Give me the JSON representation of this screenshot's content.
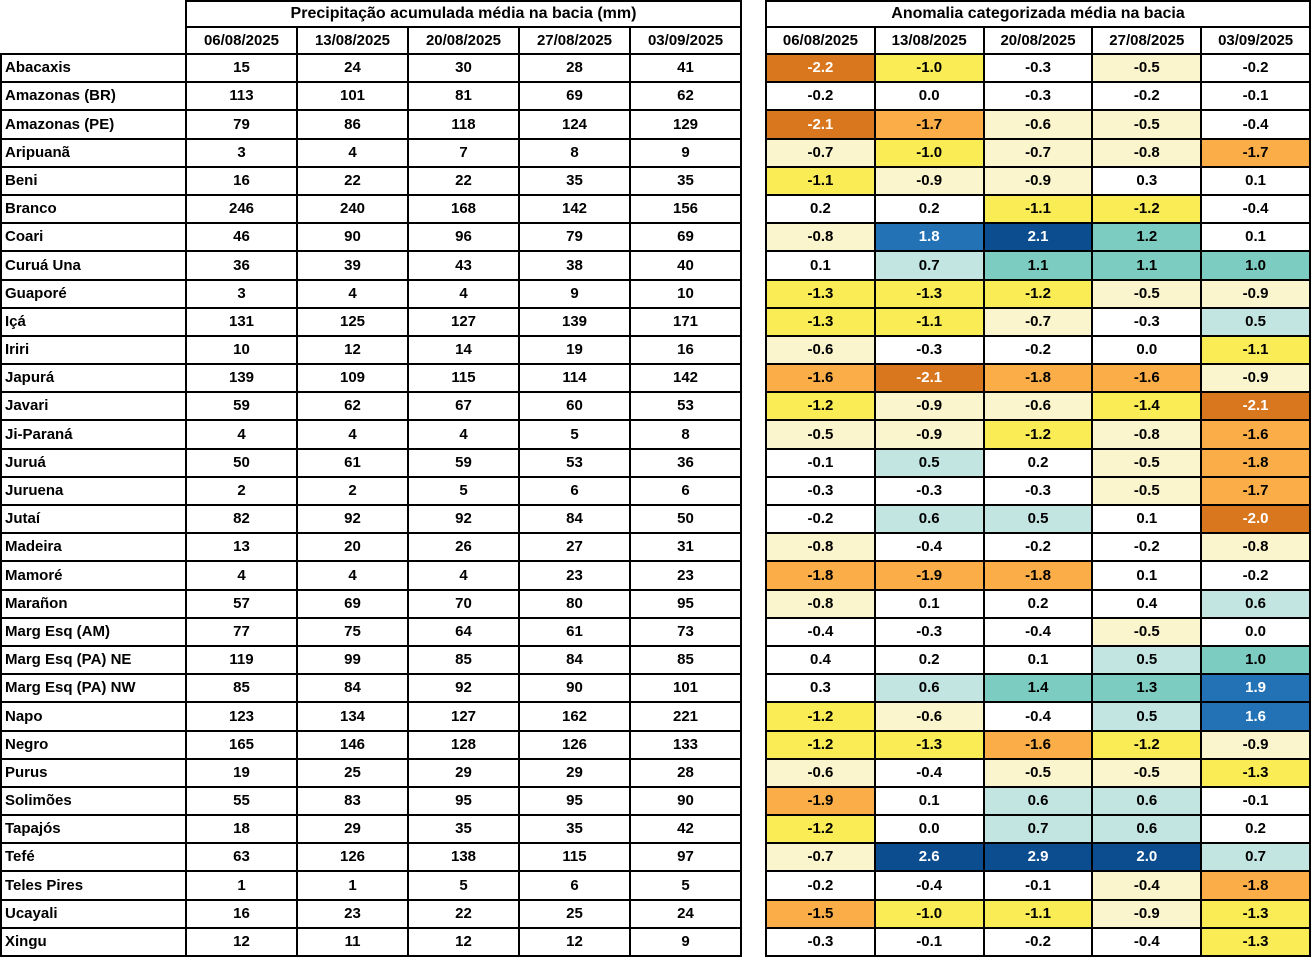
{
  "chart_data": [
    {
      "type": "table",
      "title": "Precipitação acumulada média na bacia (mm)",
      "columns": [
        "06/08/2025",
        "13/08/2025",
        "20/08/2025",
        "27/08/2025",
        "03/09/2025"
      ],
      "row_label": "basin",
      "rows": [
        {
          "basin": "Abacaxis",
          "values": [
            15,
            24,
            30,
            28,
            41
          ]
        },
        {
          "basin": "Amazonas (BR)",
          "values": [
            113,
            101,
            81,
            69,
            62
          ]
        },
        {
          "basin": "Amazonas (PE)",
          "values": [
            79,
            86,
            118,
            124,
            129
          ]
        },
        {
          "basin": "Aripuanã",
          "values": [
            3,
            4,
            7,
            8,
            9
          ]
        },
        {
          "basin": "Beni",
          "values": [
            16,
            22,
            22,
            35,
            35
          ]
        },
        {
          "basin": "Branco",
          "values": [
            246,
            240,
            168,
            142,
            156
          ]
        },
        {
          "basin": "Coari",
          "values": [
            46,
            90,
            96,
            79,
            69
          ]
        },
        {
          "basin": "Curuá Una",
          "values": [
            36,
            39,
            43,
            38,
            40
          ]
        },
        {
          "basin": "Guaporé",
          "values": [
            3,
            4,
            4,
            9,
            10
          ]
        },
        {
          "basin": "Içá",
          "values": [
            131,
            125,
            127,
            139,
            171
          ]
        },
        {
          "basin": "Iriri",
          "values": [
            10,
            12,
            14,
            19,
            16
          ]
        },
        {
          "basin": "Japurá",
          "values": [
            139,
            109,
            115,
            114,
            142
          ]
        },
        {
          "basin": "Javari",
          "values": [
            59,
            62,
            67,
            60,
            53
          ]
        },
        {
          "basin": "Ji-Paraná",
          "values": [
            4,
            4,
            4,
            5,
            8
          ]
        },
        {
          "basin": "Juruá",
          "values": [
            50,
            61,
            59,
            53,
            36
          ]
        },
        {
          "basin": "Juruena",
          "values": [
            2,
            2,
            5,
            6,
            6
          ]
        },
        {
          "basin": "Jutaí",
          "values": [
            82,
            92,
            92,
            84,
            50
          ]
        },
        {
          "basin": "Madeira",
          "values": [
            13,
            20,
            26,
            27,
            31
          ]
        },
        {
          "basin": "Mamoré",
          "values": [
            4,
            4,
            4,
            23,
            23
          ]
        },
        {
          "basin": "Marañon",
          "values": [
            57,
            69,
            70,
            80,
            95
          ]
        },
        {
          "basin": "Marg Esq (AM)",
          "values": [
            77,
            75,
            64,
            61,
            73
          ]
        },
        {
          "basin": "Marg Esq (PA) NE",
          "values": [
            119,
            99,
            85,
            84,
            85
          ]
        },
        {
          "basin": "Marg Esq (PA) NW",
          "values": [
            85,
            84,
            92,
            90,
            101
          ]
        },
        {
          "basin": "Napo",
          "values": [
            123,
            134,
            127,
            162,
            221
          ]
        },
        {
          "basin": "Negro",
          "values": [
            165,
            146,
            128,
            126,
            133
          ]
        },
        {
          "basin": "Purus",
          "values": [
            19,
            25,
            29,
            29,
            28
          ]
        },
        {
          "basin": "Solimões",
          "values": [
            55,
            83,
            95,
            95,
            90
          ]
        },
        {
          "basin": "Tapajós",
          "values": [
            18,
            29,
            35,
            35,
            42
          ]
        },
        {
          "basin": "Tefé",
          "values": [
            63,
            126,
            138,
            115,
            97
          ]
        },
        {
          "basin": "Teles Pires",
          "values": [
            1,
            1,
            5,
            6,
            5
          ]
        },
        {
          "basin": "Ucayali",
          "values": [
            16,
            23,
            22,
            25,
            24
          ]
        },
        {
          "basin": "Xingu",
          "values": [
            12,
            11,
            12,
            12,
            9
          ]
        }
      ]
    },
    {
      "type": "heatmap",
      "title": "Anomalia categorizada média na bacia",
      "columns": [
        "06/08/2025",
        "13/08/2025",
        "20/08/2025",
        "27/08/2025",
        "03/09/2025"
      ],
      "row_label": "basin",
      "category_colors": {
        "-4": {
          "bg": "#D9771E",
          "fg": "#FFFFFF"
        },
        "-3": {
          "bg": "#FBAE47",
          "fg": "#000000"
        },
        "-2": {
          "bg": "#F9EC54",
          "fg": "#000000"
        },
        "-1": {
          "bg": "#FAF5CC",
          "fg": "#000000"
        },
        "0": {
          "bg": "#FFFFFF",
          "fg": "#000000"
        },
        "1": {
          "bg": "#C3E5E2",
          "fg": "#000000"
        },
        "2": {
          "bg": "#7CCCC1",
          "fg": "#000000"
        },
        "3": {
          "bg": "#2272B5",
          "fg": "#FFFFFF"
        },
        "4": {
          "bg": "#0B4D8E",
          "fg": "#FFFFFF"
        }
      },
      "rows": [
        {
          "basin": "Abacaxis",
          "values": [
            "-2.2",
            "-1.0",
            "-0.3",
            "-0.5",
            "-0.2"
          ],
          "cats": [
            -4,
            -2,
            0,
            -1,
            0
          ]
        },
        {
          "basin": "Amazonas (BR)",
          "values": [
            "-0.2",
            "0.0",
            "-0.3",
            "-0.2",
            "-0.1"
          ],
          "cats": [
            0,
            0,
            0,
            0,
            0
          ]
        },
        {
          "basin": "Amazonas (PE)",
          "values": [
            "-2.1",
            "-1.7",
            "-0.6",
            "-0.5",
            "-0.4"
          ],
          "cats": [
            -4,
            -3,
            -1,
            -1,
            0
          ]
        },
        {
          "basin": "Aripuanã",
          "values": [
            "-0.7",
            "-1.0",
            "-0.7",
            "-0.8",
            "-1.7"
          ],
          "cats": [
            -1,
            -2,
            -1,
            -1,
            -3
          ]
        },
        {
          "basin": "Beni",
          "values": [
            "-1.1",
            "-0.9",
            "-0.9",
            "0.3",
            "0.1"
          ],
          "cats": [
            -2,
            -1,
            -1,
            0,
            0
          ]
        },
        {
          "basin": "Branco",
          "values": [
            "0.2",
            "0.2",
            "-1.1",
            "-1.2",
            "-0.4"
          ],
          "cats": [
            0,
            0,
            -2,
            -2,
            0
          ]
        },
        {
          "basin": "Coari",
          "values": [
            "-0.8",
            "1.8",
            "2.1",
            "1.2",
            "0.1"
          ],
          "cats": [
            -1,
            3,
            4,
            2,
            0
          ]
        },
        {
          "basin": "Curuá Una",
          "values": [
            "0.1",
            "0.7",
            "1.1",
            "1.1",
            "1.0"
          ],
          "cats": [
            0,
            1,
            2,
            2,
            2
          ]
        },
        {
          "basin": "Guaporé",
          "values": [
            "-1.3",
            "-1.3",
            "-1.2",
            "-0.5",
            "-0.9"
          ],
          "cats": [
            -2,
            -2,
            -2,
            -1,
            -1
          ]
        },
        {
          "basin": "Içá",
          "values": [
            "-1.3",
            "-1.1",
            "-0.7",
            "-0.3",
            "0.5"
          ],
          "cats": [
            -2,
            -2,
            -1,
            0,
            1
          ]
        },
        {
          "basin": "Iriri",
          "values": [
            "-0.6",
            "-0.3",
            "-0.2",
            "0.0",
            "-1.1"
          ],
          "cats": [
            -1,
            0,
            0,
            0,
            -2
          ]
        },
        {
          "basin": "Japurá",
          "values": [
            "-1.6",
            "-2.1",
            "-1.8",
            "-1.6",
            "-0.9"
          ],
          "cats": [
            -3,
            -4,
            -3,
            -3,
            -1
          ]
        },
        {
          "basin": "Javari",
          "values": [
            "-1.2",
            "-0.9",
            "-0.6",
            "-1.4",
            "-2.1"
          ],
          "cats": [
            -2,
            -1,
            -1,
            -2,
            -4
          ]
        },
        {
          "basin": "Ji-Paraná",
          "values": [
            "-0.5",
            "-0.9",
            "-1.2",
            "-0.8",
            "-1.6"
          ],
          "cats": [
            -1,
            -1,
            -2,
            -1,
            -3
          ]
        },
        {
          "basin": "Juruá",
          "values": [
            "-0.1",
            "0.5",
            "0.2",
            "-0.5",
            "-1.8"
          ],
          "cats": [
            0,
            1,
            0,
            -1,
            -3
          ]
        },
        {
          "basin": "Juruena",
          "values": [
            "-0.3",
            "-0.3",
            "-0.3",
            "-0.5",
            "-1.7"
          ],
          "cats": [
            0,
            0,
            0,
            -1,
            -3
          ]
        },
        {
          "basin": "Jutaí",
          "values": [
            "-0.2",
            "0.6",
            "0.5",
            "0.1",
            "-2.0"
          ],
          "cats": [
            0,
            1,
            1,
            0,
            -4
          ]
        },
        {
          "basin": "Madeira",
          "values": [
            "-0.8",
            "-0.4",
            "-0.2",
            "-0.2",
            "-0.8"
          ],
          "cats": [
            -1,
            0,
            0,
            0,
            -1
          ]
        },
        {
          "basin": "Mamoré",
          "values": [
            "-1.8",
            "-1.9",
            "-1.8",
            "0.1",
            "-0.2"
          ],
          "cats": [
            -3,
            -3,
            -3,
            0,
            0
          ]
        },
        {
          "basin": "Marañon",
          "values": [
            "-0.8",
            "0.1",
            "0.2",
            "0.4",
            "0.6"
          ],
          "cats": [
            -1,
            0,
            0,
            0,
            1
          ]
        },
        {
          "basin": "Marg Esq (AM)",
          "values": [
            "-0.4",
            "-0.3",
            "-0.4",
            "-0.5",
            "0.0"
          ],
          "cats": [
            0,
            0,
            0,
            -1,
            0
          ]
        },
        {
          "basin": "Marg Esq (PA) NE",
          "values": [
            "0.4",
            "0.2",
            "0.1",
            "0.5",
            "1.0"
          ],
          "cats": [
            0,
            0,
            0,
            1,
            2
          ]
        },
        {
          "basin": "Marg Esq (PA) NW",
          "values": [
            "0.3",
            "0.6",
            "1.4",
            "1.3",
            "1.9"
          ],
          "cats": [
            0,
            1,
            2,
            2,
            3
          ]
        },
        {
          "basin": "Napo",
          "values": [
            "-1.2",
            "-0.6",
            "-0.4",
            "0.5",
            "1.6"
          ],
          "cats": [
            -2,
            -1,
            0,
            1,
            3
          ]
        },
        {
          "basin": "Negro",
          "values": [
            "-1.2",
            "-1.3",
            "-1.6",
            "-1.2",
            "-0.9"
          ],
          "cats": [
            -2,
            -2,
            -3,
            -2,
            -1
          ]
        },
        {
          "basin": "Purus",
          "values": [
            "-0.6",
            "-0.4",
            "-0.5",
            "-0.5",
            "-1.3"
          ],
          "cats": [
            -1,
            0,
            -1,
            -1,
            -2
          ]
        },
        {
          "basin": "Solimões",
          "values": [
            "-1.9",
            "0.1",
            "0.6",
            "0.6",
            "-0.1"
          ],
          "cats": [
            -3,
            0,
            1,
            1,
            0
          ]
        },
        {
          "basin": "Tapajós",
          "values": [
            "-1.2",
            "0.0",
            "0.7",
            "0.6",
            "0.2"
          ],
          "cats": [
            -2,
            0,
            1,
            1,
            0
          ]
        },
        {
          "basin": "Tefé",
          "values": [
            "-0.7",
            "2.6",
            "2.9",
            "2.0",
            "0.7"
          ],
          "cats": [
            -1,
            4,
            4,
            4,
            1
          ]
        },
        {
          "basin": "Teles Pires",
          "values": [
            "-0.2",
            "-0.4",
            "-0.1",
            "-0.4",
            "-1.8"
          ],
          "cats": [
            0,
            0,
            0,
            -1,
            -3
          ]
        },
        {
          "basin": "Ucayali",
          "values": [
            "-1.5",
            "-1.0",
            "-1.1",
            "-0.9",
            "-1.3"
          ],
          "cats": [
            -3,
            -2,
            -2,
            -1,
            -2
          ]
        },
        {
          "basin": "Xingu",
          "values": [
            "-0.3",
            "-0.1",
            "-0.2",
            "-0.4",
            "-1.3"
          ],
          "cats": [
            0,
            0,
            0,
            0,
            -2
          ]
        }
      ]
    }
  ]
}
